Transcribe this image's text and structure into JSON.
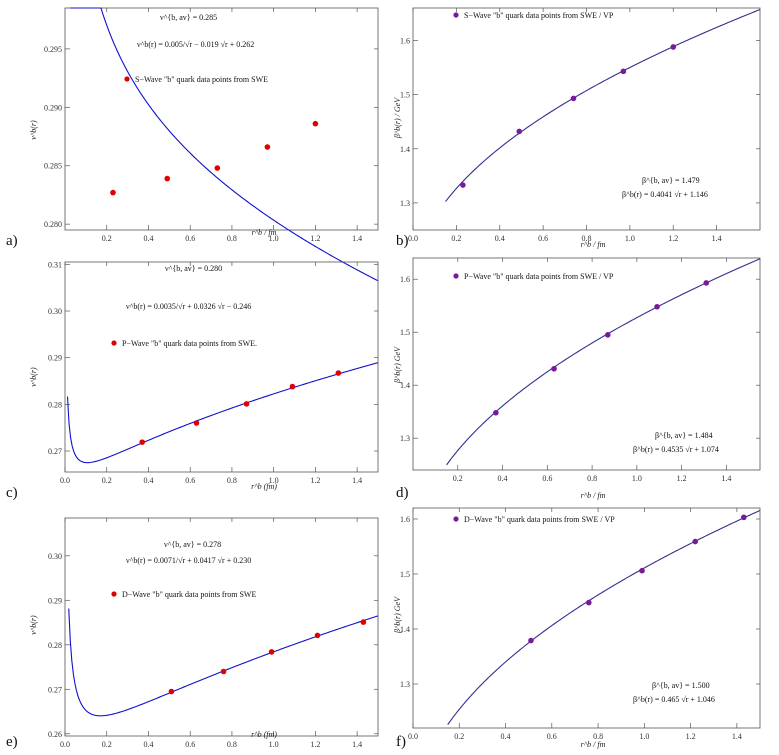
{
  "chart_data": [
    {
      "id": "a",
      "panel_label": "a)",
      "type": "scatter",
      "xlabel": "r^b / fm",
      "ylabel": "ν^b(r)",
      "xlim": [
        0.0,
        1.5
      ],
      "ylim": [
        0.2795,
        0.2985
      ],
      "xticks": [
        0.2,
        0.4,
        0.6,
        0.8,
        1.0,
        1.2,
        1.4
      ],
      "xtick_labels": [
        "0.2",
        "0.4",
        "0.6",
        "0.8",
        "1.0",
        "1.2",
        "1.4"
      ],
      "yticks": [
        0.28,
        0.285,
        0.29,
        0.295
      ],
      "ytick_labels": [
        "0.280",
        "0.285",
        "0.290",
        "0.295"
      ],
      "series": [
        {
          "name": "S-Wave \"b\" quark data points from SWE",
          "color": "#e00000",
          "x": [
            0.23,
            0.49,
            0.73,
            0.97,
            1.2
          ],
          "y": [
            0.2827,
            0.2839,
            0.2848,
            0.2866,
            0.2886
          ]
        }
      ],
      "fit": {
        "form": "nu",
        "a": 0.005,
        "b": -0.019,
        "c": 0.262,
        "x_start": 0.025,
        "x_end": 1.5,
        "color": "#1010d0"
      },
      "annotations": {
        "line1": "ν^{b, av} = 0.285",
        "line2": "ν^b(r) = 0.005/√r − 0.019 √r + 0.262"
      },
      "legend": "S−Wave \"b\" quark data points from SWE"
    },
    {
      "id": "b",
      "panel_label": "b)",
      "type": "scatter",
      "xlabel": "r^b / fm",
      "ylabel": "β^b(r) / GeV",
      "xlim": [
        0.0,
        1.6
      ],
      "ylim": [
        1.25,
        1.66
      ],
      "xticks": [
        0.0,
        0.2,
        0.4,
        0.6,
        0.8,
        1.0,
        1.2,
        1.4
      ],
      "xtick_labels": [
        "0.0",
        "0.2",
        "0.4",
        "0.6",
        "0.8",
        "1.0",
        "1.2",
        "1.4"
      ],
      "yticks": [
        1.3,
        1.4,
        1.5,
        1.6
      ],
      "ytick_labels": [
        "1.3",
        "1.4",
        "1.5",
        "1.6"
      ],
      "series": [
        {
          "name": "S-Wave \"b\" quark data points from SWE / VP",
          "color": "#7a1a9a",
          "x": [
            0.23,
            0.49,
            0.74,
            0.97,
            1.2
          ],
          "y": [
            1.333,
            1.432,
            1.493,
            1.543,
            1.588
          ]
        }
      ],
      "fit": {
        "form": "beta",
        "a": 0.4041,
        "c": 1.146,
        "x_start": 0.15,
        "x_end": 1.6,
        "color": "#303090"
      },
      "annotations": {
        "line1": "β^{b, av} = 1.479",
        "line2": "β^b(r) = 0.4041 √r + 1.146"
      },
      "legend": "S−Wave \"b\" quark data points from SWE / VP"
    },
    {
      "id": "c",
      "panel_label": "c)",
      "type": "scatter",
      "xlabel": "r^b (fm)",
      "ylabel": "ν^b(r)",
      "xlim": [
        0.0,
        1.5
      ],
      "ylim": [
        0.2655,
        0.3105
      ],
      "xticks": [
        0.0,
        0.2,
        0.4,
        0.6,
        0.8,
        1.0,
        1.2,
        1.4
      ],
      "xtick_labels": [
        "0.0",
        "0.2",
        "0.4",
        "0.6",
        "0.8",
        "1.0",
        "1.2",
        "1.4"
      ],
      "yticks": [
        0.27,
        0.28,
        0.29,
        0.3,
        0.31
      ],
      "ytick_labels": [
        "0.27",
        "0.28",
        "0.29",
        "0.30",
        "0.31"
      ],
      "series": [
        {
          "name": "P-Wave \"b\" quark data points from SWE",
          "color": "#e00000",
          "x": [
            0.37,
            0.63,
            0.87,
            1.09,
            1.31
          ],
          "y": [
            0.2719,
            0.276,
            0.2801,
            0.2838,
            0.2867
          ]
        }
      ],
      "fit": {
        "form": "nu",
        "a": 0.0035,
        "b": 0.0326,
        "c": -0.246,
        "x_start": 0.012,
        "x_end": 1.5,
        "color": "#1010d0"
      },
      "annotations": {
        "line1": "ν^{b, av} = 0.280",
        "line2": "ν^b(r) = 0.0035/√r + 0.0326 √r − 0.246"
      },
      "legend": "P−Wave \"b\" quark data points from SWE."
    },
    {
      "id": "d",
      "panel_label": "d)",
      "type": "scatter",
      "xlabel": "r^b / fm",
      "ylabel": "β^b(r) GeV",
      "xlim": [
        0.0,
        1.55
      ],
      "ylim": [
        1.24,
        1.64
      ],
      "xticks": [
        0.2,
        0.4,
        0.6,
        0.8,
        1.0,
        1.2,
        1.4
      ],
      "xtick_labels": [
        "0.2",
        "0.4",
        "0.6",
        "0.8",
        "1.0",
        "1.2",
        "1.4"
      ],
      "yticks": [
        1.3,
        1.4,
        1.5,
        1.6
      ],
      "ytick_labels": [
        "1.3",
        "1.4",
        "1.5",
        "1.6"
      ],
      "series": [
        {
          "name": "P-Wave \"b\" quark data points from SWE / VP",
          "color": "#7a1a9a",
          "x": [
            0.37,
            0.63,
            0.87,
            1.09,
            1.31
          ],
          "y": [
            1.348,
            1.431,
            1.495,
            1.548,
            1.593
          ]
        }
      ],
      "fit": {
        "form": "beta",
        "a": 0.4535,
        "c": 1.074,
        "x_start": 0.15,
        "x_end": 1.55,
        "color": "#303090"
      },
      "annotations": {
        "line1": "β^{b, av} = 1.484",
        "line2": "β^b(r) = 0.4535 √r + 1.074"
      },
      "legend": "P−Wave \"b\" quark data points from SWE / VP"
    },
    {
      "id": "e",
      "panel_label": "e)",
      "type": "scatter",
      "xlabel": "r^b (fm)",
      "ylabel": "ν^b(r)",
      "xlim": [
        0.0,
        1.5
      ],
      "ylim": [
        0.2595,
        0.3085
      ],
      "xticks": [
        0.0,
        0.2,
        0.4,
        0.6,
        0.8,
        1.0,
        1.2,
        1.4
      ],
      "xtick_labels": [
        "0.0",
        "0.2",
        "0.4",
        "0.6",
        "0.8",
        "1.0",
        "1.2",
        "1.4"
      ],
      "yticks": [
        0.26,
        0.27,
        0.28,
        0.29,
        0.3
      ],
      "ytick_labels": [
        "0.26",
        "0.27",
        "0.28",
        "0.29",
        "0.30"
      ],
      "series": [
        {
          "name": "D-Wave \"b\" quark data points from SWE",
          "color": "#e00000",
          "x": [
            0.51,
            0.76,
            0.99,
            1.21,
            1.43
          ],
          "y": [
            0.2695,
            0.274,
            0.2784,
            0.2821,
            0.2851
          ]
        }
      ],
      "fit": {
        "form": "nu",
        "a": 0.0071,
        "b": 0.0417,
        "c": 0.23,
        "x_start": 0.018,
        "x_end": 1.5,
        "color": "#1010d0"
      },
      "annotations": {
        "line1": "ν^{b, av} = 0.278",
        "line2": "ν^b(r) = 0.0071/√r + 0.0417 √r + 0.230"
      },
      "legend": "D−Wave \"b\" quark data points from SWE"
    },
    {
      "id": "f",
      "panel_label": "f)",
      "type": "scatter",
      "xlabel": "r^b / fm",
      "ylabel": "β^b(r) GeV",
      "xlim": [
        0.0,
        1.5
      ],
      "ylim": [
        1.22,
        1.62
      ],
      "xticks": [
        0.0,
        0.2,
        0.4,
        0.6,
        0.8,
        1.0,
        1.2,
        1.4
      ],
      "xtick_labels": [
        "0.0",
        "0.2",
        "0.4",
        "0.6",
        "0.8",
        "1.0",
        "1.2",
        "1.4"
      ],
      "yticks": [
        1.3,
        1.4,
        1.5,
        1.6
      ],
      "ytick_labels": [
        "1.3",
        "1.4",
        "1.5",
        "1.6"
      ],
      "series": [
        {
          "name": "D-Wave \"b\" quark data points from SWE / VP",
          "color": "#7a1a9a",
          "x": [
            0.51,
            0.76,
            0.99,
            1.22,
            1.43
          ],
          "y": [
            1.379,
            1.448,
            1.506,
            1.559,
            1.603
          ]
        }
      ],
      "fit": {
        "form": "beta",
        "a": 0.465,
        "c": 1.046,
        "x_start": 0.15,
        "x_end": 1.5,
        "color": "#303090"
      },
      "annotations": {
        "line1": "β^{b, av} = 1.500",
        "line2": "β^b(r) = 0.465 √r + 1.046"
      },
      "legend": "D−Wave \"b\" quark data points from SWE / VP"
    }
  ]
}
